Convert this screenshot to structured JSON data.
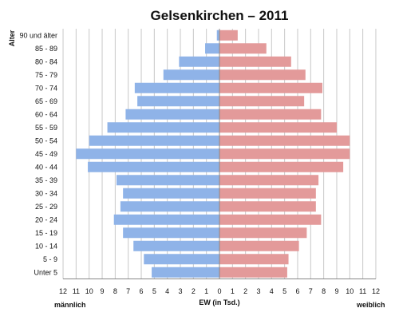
{
  "chart_data": {
    "type": "bar",
    "title": "Gelsenkirchen – 2011",
    "ylabel": "Alter",
    "xlabel": "EW (in Tsd.)",
    "left_label": "männlich",
    "right_label": "weiblich",
    "xlim": [
      -12,
      12
    ],
    "x_ticks": [
      "12",
      "11",
      "10",
      "9",
      "8",
      "7",
      "6",
      "5",
      "4",
      "3",
      "2",
      "1",
      "0",
      "1",
      "2",
      "3",
      "4",
      "5",
      "6",
      "7",
      "8",
      "9",
      "10",
      "11",
      "12"
    ],
    "grid": true,
    "categories": [
      "90 und älter",
      "85 - 89",
      "80 - 84",
      "75 - 79",
      "70 - 74",
      "65 - 69",
      "60 - 64",
      "55 - 59",
      "50 - 54",
      "45 - 49",
      "40 - 44",
      "35 - 39",
      "30 - 34",
      "25 - 29",
      "20 - 24",
      "15 - 19",
      "10 - 14",
      "5 - 9",
      "Unter 5"
    ],
    "series": [
      {
        "name": "männlich",
        "color": "#8fb3e8",
        "values": [
          0.2,
          1.1,
          3.1,
          4.3,
          6.5,
          6.3,
          7.2,
          8.6,
          10.0,
          11.0,
          10.1,
          7.9,
          7.4,
          7.6,
          8.1,
          7.4,
          6.6,
          5.8,
          5.2
        ]
      },
      {
        "name": "weiblich",
        "color": "#e39a9a",
        "values": [
          1.4,
          3.6,
          5.5,
          6.6,
          7.9,
          6.5,
          7.8,
          9.0,
          10.0,
          10.0,
          9.5,
          7.6,
          7.4,
          7.4,
          7.8,
          6.7,
          6.1,
          5.3,
          5.2
        ]
      }
    ]
  }
}
